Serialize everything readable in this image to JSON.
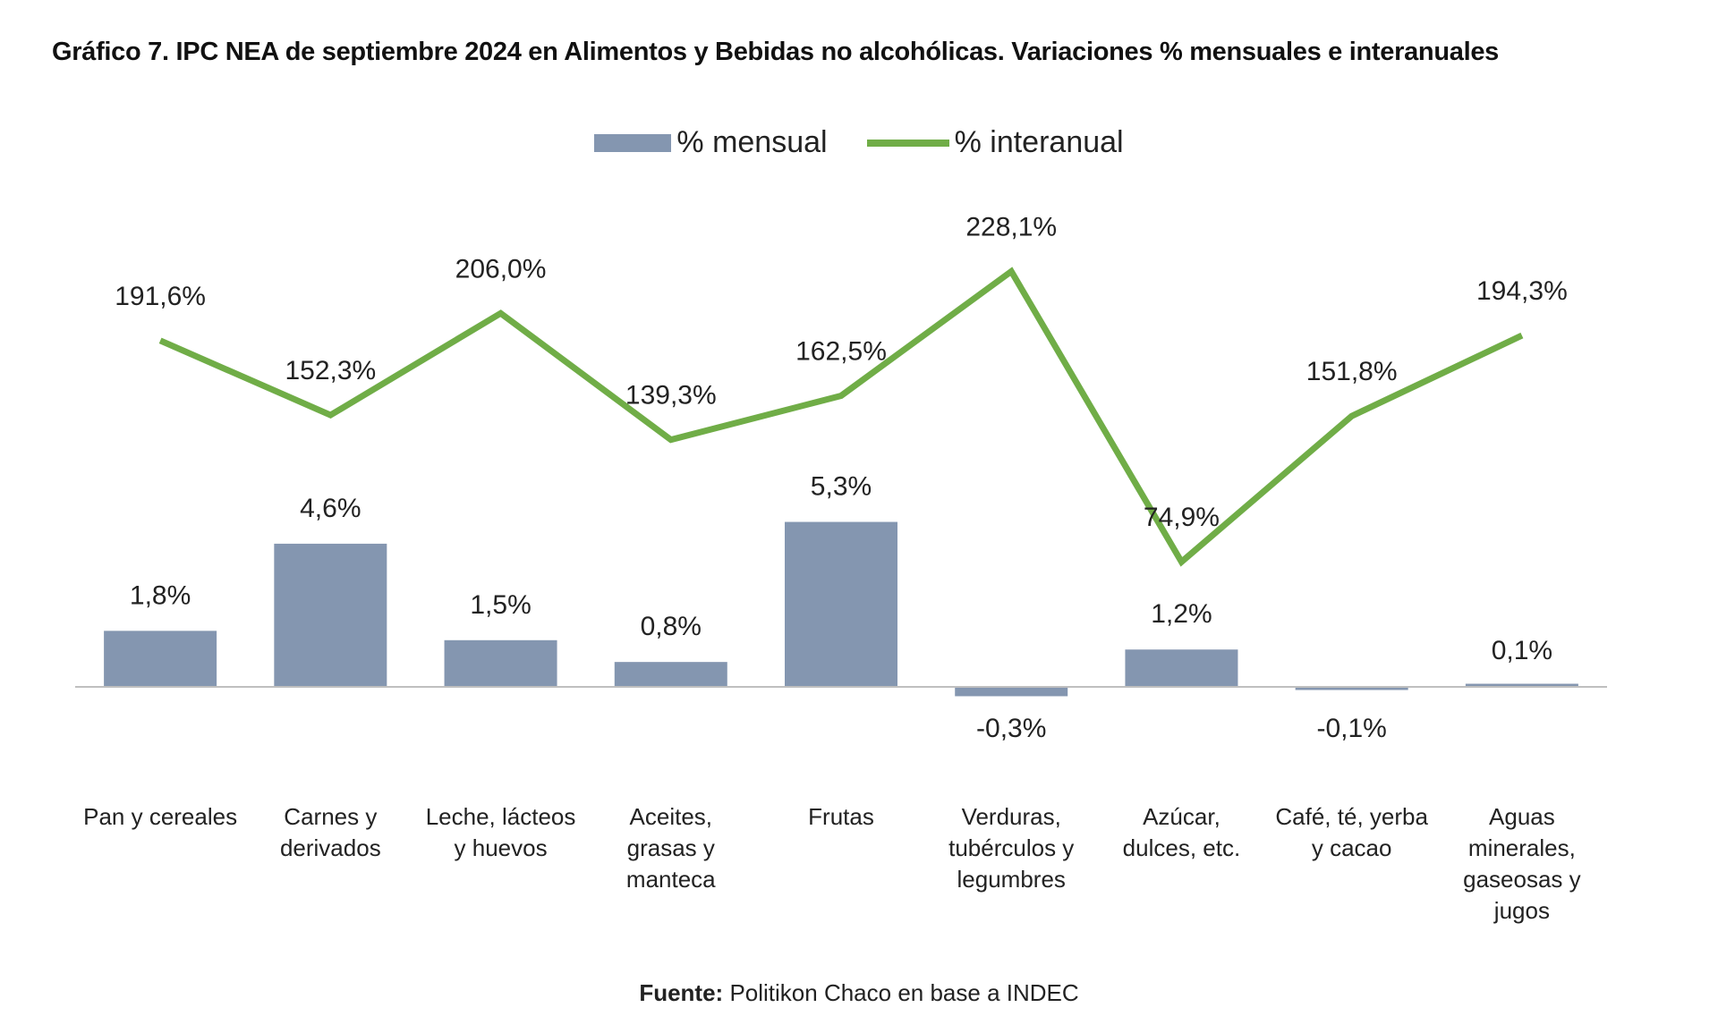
{
  "title": "Gráfico 7. IPC NEA de septiembre 2024 en Alimentos y Bebidas no alcohólicas. Variaciones % mensuales e interanuales",
  "legend": {
    "bar_label": "% mensual",
    "line_label": "% interanual"
  },
  "source": {
    "label": "Fuente:",
    "text": " Politikon Chaco en base a INDEC"
  },
  "colors": {
    "bar": "#8496B0",
    "line": "#70AD47",
    "axis": "#BFBFBF",
    "text": "#222222"
  },
  "chart_data": {
    "type": "bar",
    "categories": [
      [
        "Pan y cereales"
      ],
      [
        "Carnes y",
        "derivados"
      ],
      [
        "Leche, lácteos",
        "y huevos"
      ],
      [
        "Aceites,",
        "grasas y",
        "manteca"
      ],
      [
        "Frutas"
      ],
      [
        "Verduras,",
        "tubérculos y",
        "legumbres"
      ],
      [
        "Azúcar,",
        "dulces, etc."
      ],
      [
        "Café, té, yerba",
        "y cacao"
      ],
      [
        "Aguas",
        "minerales,",
        "gaseosas y",
        "jugos"
      ]
    ],
    "series": [
      {
        "name": "% mensual",
        "type": "bar",
        "values": [
          1.8,
          4.6,
          1.5,
          0.8,
          5.3,
          -0.3,
          1.2,
          -0.1,
          0.1
        ],
        "labels": [
          "1,8%",
          "4,6%",
          "1,5%",
          "0,8%",
          "5,3%",
          "-0,3%",
          "1,2%",
          "-0,1%",
          "0,1%"
        ]
      },
      {
        "name": "% interanual",
        "type": "line",
        "values": [
          191.6,
          152.3,
          206.0,
          139.3,
          162.5,
          228.1,
          74.9,
          151.8,
          194.3
        ],
        "labels": [
          "191,6%",
          "152,3%",
          "206,0%",
          "139,3%",
          "162,5%",
          "228,1%",
          "74,9%",
          "151,8%",
          "194,3%"
        ]
      }
    ],
    "legend_position": "top",
    "grid": false
  }
}
